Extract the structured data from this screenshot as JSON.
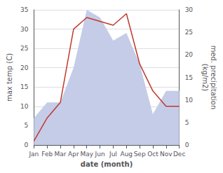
{
  "chart_data": {
    "type": "line",
    "categories": [
      "Jan",
      "Feb",
      "Mar",
      "Apr",
      "May",
      "Jun",
      "Jul",
      "Aug",
      "Sep",
      "Oct",
      "Nov",
      "Dec"
    ],
    "xlabel": "date (month)",
    "ylabel": "max temp (C)",
    "y2label": "med. precipitation\n(kg/m2)",
    "ylim": [
      0,
      35
    ],
    "yticks": [
      0,
      5,
      10,
      15,
      20,
      25,
      30,
      35
    ],
    "y2lim": [
      0,
      30
    ],
    "y2ticks": [
      0,
      5,
      10,
      15,
      20,
      25,
      30
    ],
    "grid": true,
    "series": [
      {
        "type": "area",
        "color": "#c5cce8",
        "values": [
          7,
          11,
          11,
          20,
          35,
          33,
          27,
          29,
          21,
          8,
          14,
          14
        ]
      },
      {
        "type": "line",
        "color": "#c0392b",
        "values": [
          1,
          7,
          11,
          30,
          33,
          32,
          31,
          34,
          21,
          14,
          10,
          10
        ]
      }
    ]
  }
}
